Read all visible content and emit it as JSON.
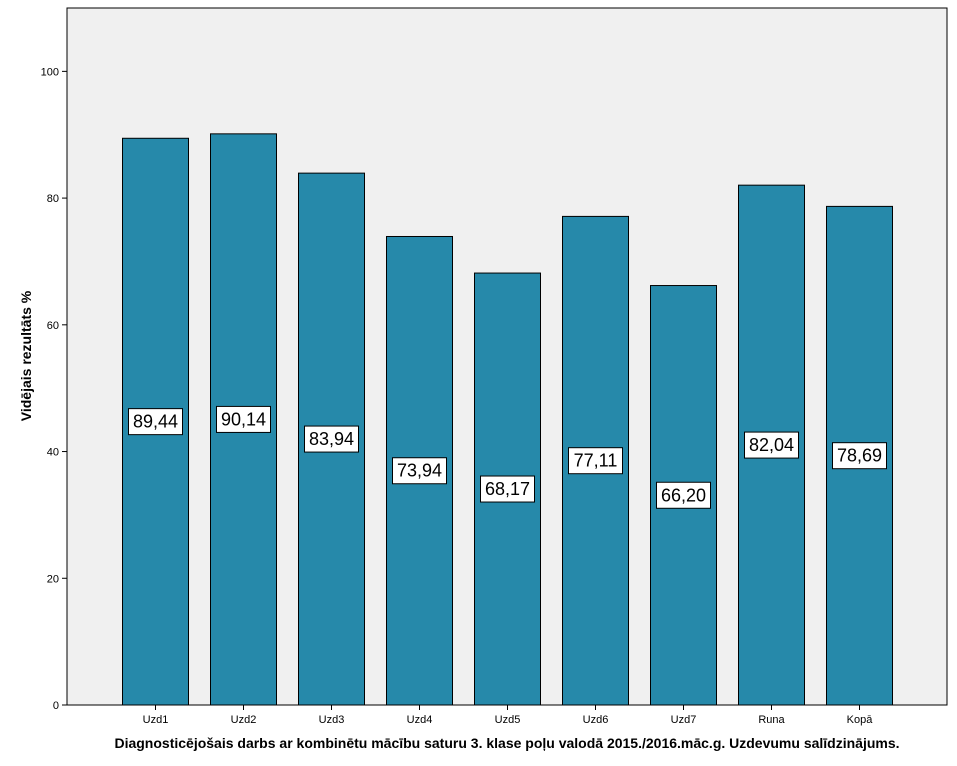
{
  "chart_data": {
    "type": "bar",
    "categories": [
      "Uzd1",
      "Uzd2",
      "Uzd3",
      "Uzd4",
      "Uzd5",
      "Uzd6",
      "Uzd7",
      "Runa",
      "Kopā"
    ],
    "values": [
      89.44,
      90.14,
      83.94,
      73.94,
      68.17,
      77.11,
      66.2,
      82.04,
      78.69
    ],
    "data_labels": [
      "89,44",
      "90,14",
      "83,94",
      "73,94",
      "68,17",
      "77,11",
      "66,20",
      "82,04",
      "78,69"
    ],
    "title": "",
    "xlabel": "Diagnosticējošais darbs ar kombinētu mācību saturu 3. klase poļu valodā 2015./2016.māc.g. Uzdevumu salīdzinājums.",
    "ylabel": "Vidējais rezultāts %",
    "ylim": [
      0,
      110
    ],
    "yticks": [
      0,
      20,
      40,
      60,
      80,
      100
    ],
    "ytick_labels": [
      "0",
      "20",
      "40",
      "60",
      "80",
      "100"
    ],
    "grid": false,
    "legend": "none",
    "colors": {
      "bar_fill": "#2689aa",
      "bar_stroke": "#000000",
      "plot_background": "#f0f0f0",
      "label_box": "#ffffff"
    }
  }
}
